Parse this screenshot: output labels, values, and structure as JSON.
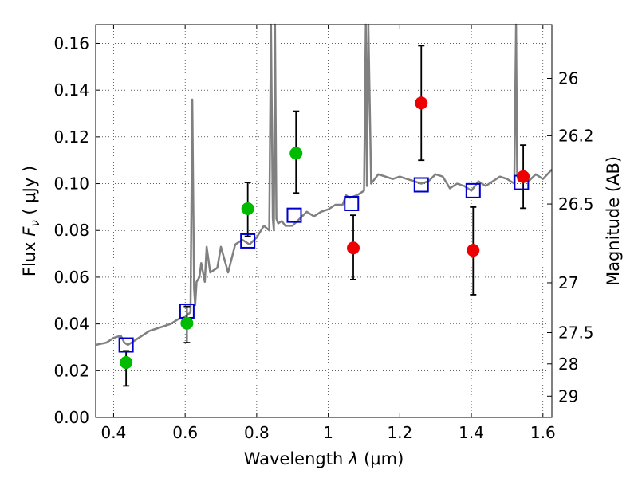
{
  "chart_data": {
    "type": "scatter",
    "xlabel_text": "Wavelength",
    "xlabel_symbol": "λ",
    "xlabel_unit": "(μm)",
    "ylabel_text": "Flux",
    "ylabel_symbol": "F",
    "ylabel_sub": "ν",
    "ylabel_unit": "( μJy )",
    "y2label": "Magnitude (AB)",
    "xlim": [
      0.35,
      1.625
    ],
    "ylim": [
      0.0,
      0.168
    ],
    "grid": true,
    "xticks": [
      0.4,
      0.6,
      0.8,
      1.0,
      1.2,
      1.4,
      1.6
    ],
    "xtick_labels": [
      "0.4",
      "0.6",
      "0.8",
      "1",
      "1.2",
      "1.4",
      "1.6"
    ],
    "yticks": [
      0.0,
      0.02,
      0.04,
      0.06,
      0.08,
      0.1,
      0.12,
      0.14,
      0.16
    ],
    "ytick_labels": [
      "0.00",
      "0.02",
      "0.04",
      "0.06",
      "0.08",
      "0.10",
      "0.12",
      "0.14",
      "0.16"
    ],
    "y2ticks": [
      {
        "label": "26",
        "flux": 0.145
      },
      {
        "label": "26.2",
        "flux": 0.1205
      },
      {
        "label": "26.5",
        "flux": 0.0913
      },
      {
        "label": "27",
        "flux": 0.0576
      },
      {
        "label": "27.5",
        "flux": 0.0363
      },
      {
        "label": "28",
        "flux": 0.0229
      },
      {
        "label": "29",
        "flux": 0.0091
      }
    ],
    "template_spectrum": {
      "color": "#808080",
      "x": [
        0.35,
        0.38,
        0.4,
        0.42,
        0.43,
        0.44,
        0.46,
        0.48,
        0.5,
        0.52,
        0.54,
        0.56,
        0.58,
        0.6,
        0.615,
        0.62,
        0.625,
        0.628,
        0.632,
        0.64,
        0.645,
        0.655,
        0.66,
        0.67,
        0.69,
        0.7,
        0.72,
        0.74,
        0.76,
        0.78,
        0.8,
        0.82,
        0.835,
        0.84,
        0.845,
        0.848,
        0.851,
        0.855,
        0.86,
        0.87,
        0.88,
        0.9,
        0.92,
        0.94,
        0.96,
        0.98,
        1.0,
        1.02,
        1.04,
        1.05,
        1.06,
        1.08,
        1.1,
        1.105,
        1.108,
        1.112,
        1.12,
        1.14,
        1.16,
        1.18,
        1.2,
        1.22,
        1.24,
        1.26,
        1.28,
        1.3,
        1.32,
        1.34,
        1.36,
        1.38,
        1.4,
        1.42,
        1.44,
        1.46,
        1.48,
        1.5,
        1.52,
        1.525,
        1.528,
        1.532,
        1.54,
        1.56,
        1.58,
        1.6,
        1.625
      ],
      "y": [
        0.031,
        0.032,
        0.034,
        0.035,
        0.032,
        0.031,
        0.033,
        0.035,
        0.037,
        0.038,
        0.039,
        0.04,
        0.042,
        0.043,
        0.045,
        0.136,
        0.055,
        0.048,
        0.058,
        0.06,
        0.066,
        0.058,
        0.073,
        0.062,
        0.064,
        0.073,
        0.062,
        0.074,
        0.076,
        0.074,
        0.077,
        0.082,
        0.08,
        0.168,
        0.085,
        0.08,
        0.168,
        0.085,
        0.083,
        0.084,
        0.082,
        0.082,
        0.085,
        0.088,
        0.086,
        0.088,
        0.089,
        0.091,
        0.091,
        0.095,
        0.094,
        0.095,
        0.097,
        0.168,
        0.099,
        0.168,
        0.1,
        0.104,
        0.103,
        0.102,
        0.103,
        0.102,
        0.101,
        0.1,
        0.101,
        0.104,
        0.103,
        0.098,
        0.1,
        0.099,
        0.097,
        0.101,
        0.099,
        0.101,
        0.103,
        0.102,
        0.1,
        0.168,
        0.104,
        0.101,
        0.102,
        0.101,
        0.104,
        0.102,
        0.106
      ]
    },
    "series": [
      {
        "marker": "open-square",
        "color": "#0000cc",
        "x": [
          0.435,
          0.605,
          0.775,
          0.905,
          1.065,
          1.26,
          1.405,
          1.54
        ],
        "y": [
          0.031,
          0.0455,
          0.0755,
          0.0865,
          0.0915,
          0.0995,
          0.097,
          0.1005
        ]
      },
      {
        "marker": "filled-circle",
        "color": "#00bb00",
        "x": [
          0.435,
          0.605,
          0.775,
          0.91
        ],
        "y": [
          0.0235,
          0.0403,
          0.0893,
          0.113
        ],
        "yerr_low": [
          0.0135,
          0.032,
          0.0775,
          0.096
        ],
        "yerr_high": [
          0.0285,
          0.0475,
          0.1005,
          0.131
        ]
      },
      {
        "marker": "filled-circle",
        "color": "#ee0000",
        "x": [
          1.07,
          1.26,
          1.405,
          1.545
        ],
        "y": [
          0.0725,
          0.1345,
          0.0715,
          0.103
        ],
        "yerr_low": [
          0.059,
          0.11,
          0.0525,
          0.0895
        ],
        "yerr_high": [
          0.0865,
          0.159,
          0.09,
          0.1165
        ]
      }
    ]
  }
}
